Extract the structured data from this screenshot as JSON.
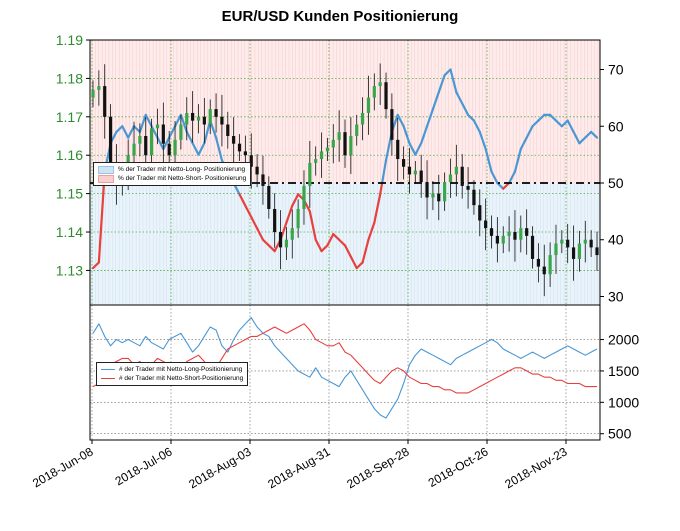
{
  "chart_data": {
    "type": "line",
    "title": "EUR/USD Kunden Positionierung",
    "x_dates": [
      "2018-Jun-08",
      "2018-Jul-06",
      "2018-Aug-03",
      "2018-Aug-31",
      "2018-Sep-28",
      "2018-Oct-26",
      "2018-Nov-23"
    ],
    "top_panel": {
      "price_axis_ticks": [
        1.13,
        1.14,
        1.15,
        1.16,
        1.17,
        1.18,
        1.19
      ],
      "price_ylim": [
        1.121,
        1.19
      ],
      "pct_axis_ticks": [
        30,
        40,
        50,
        60,
        70
      ],
      "pct_ylim": [
        28.5,
        75.2
      ],
      "neutral_line": 50,
      "legend": [
        "% der Trader mit Netto-Long- Positionierung",
        "% der Trader mit Netto-Short- Positionierung"
      ],
      "price_close_series": [
        1.177,
        1.178,
        1.17,
        1.158,
        1.152,
        1.155,
        1.16,
        1.163,
        1.165,
        1.16,
        1.167,
        1.168,
        1.163,
        1.16,
        1.164,
        1.168,
        1.171,
        1.169,
        1.17,
        1.168,
        1.172,
        1.17,
        1.168,
        1.165,
        1.163,
        1.161,
        1.16,
        1.157,
        1.155,
        1.152,
        1.146,
        1.14,
        1.136,
        1.138,
        1.141,
        1.146,
        1.152,
        1.158,
        1.159,
        1.161,
        1.162,
        1.164,
        1.166,
        1.16,
        1.165,
        1.168,
        1.171,
        1.175,
        1.178,
        1.179,
        1.172,
        1.164,
        1.159,
        1.157,
        1.155,
        1.156,
        1.153,
        1.149,
        1.15,
        1.148,
        1.153,
        1.155,
        1.157,
        1.152,
        1.151,
        1.147,
        1.143,
        1.141,
        1.139,
        1.137,
        1.139,
        1.14,
        1.138,
        1.141,
        1.139,
        1.133,
        1.131,
        1.129,
        1.134,
        1.137,
        1.138,
        1.136,
        1.133,
        1.137,
        1.138,
        1.136,
        1.134
      ],
      "long_pct_series": [
        35,
        36,
        52,
        57,
        59,
        60,
        58,
        60,
        59,
        62,
        60,
        58,
        56,
        58,
        60,
        62,
        59,
        57,
        55,
        57,
        61,
        58,
        54,
        52,
        50,
        48,
        46,
        44,
        42,
        40,
        39,
        38,
        40,
        43,
        46,
        48,
        47,
        45,
        40,
        38,
        39,
        41,
        40,
        39,
        37,
        35,
        36,
        40,
        43,
        48,
        54,
        59,
        62,
        60,
        57,
        55,
        57,
        60,
        63,
        66,
        69,
        70,
        66,
        64,
        62,
        61,
        59,
        56,
        52,
        50,
        49,
        50,
        52,
        56,
        58,
        60,
        61,
        62,
        62,
        61,
        60,
        61,
        59,
        57,
        58,
        59,
        58
      ]
    },
    "bottom_panel": {
      "y_axis_ticks": [
        500,
        1000,
        1500,
        2000
      ],
      "ylim": [
        400,
        2550
      ],
      "series": [
        {
          "name": "# der Trader mit Netto-Long-Positionierung",
          "color": "#4a97d4"
        },
        {
          "name": "# der Trader mit Netto-Short-Positionierung",
          "color": "#e8403c"
        }
      ],
      "long_count_series": [
        2100,
        2250,
        2050,
        1900,
        2000,
        1950,
        2000,
        1950,
        1900,
        2050,
        1950,
        1900,
        1850,
        2000,
        2050,
        2100,
        1950,
        1800,
        1900,
        2050,
        2200,
        2150,
        1900,
        1800,
        2000,
        2150,
        2250,
        2350,
        2200,
        2100,
        2050,
        1900,
        1800,
        1700,
        1600,
        1500,
        1450,
        1400,
        1550,
        1400,
        1350,
        1300,
        1250,
        1400,
        1500,
        1350,
        1200,
        1050,
        900,
        800,
        750,
        900,
        1050,
        1300,
        1600,
        1750,
        1850,
        1800,
        1750,
        1700,
        1650,
        1600,
        1700,
        1750,
        1800,
        1850,
        1900,
        1950,
        2000,
        1950,
        1850,
        1800,
        1750,
        1700,
        1750,
        1800,
        1750,
        1700,
        1750,
        1800,
        1850,
        1900,
        1850,
        1800,
        1750,
        1800,
        1850
      ],
      "short_count_series": [
        1250,
        1300,
        1550,
        1600,
        1650,
        1700,
        1700,
        1600,
        1650,
        1550,
        1600,
        1700,
        1650,
        1600,
        1550,
        1500,
        1650,
        1700,
        1750,
        1650,
        1500,
        1550,
        1700,
        1850,
        1900,
        1950,
        2000,
        2050,
        2050,
        2100,
        2150,
        2200,
        2150,
        2100,
        2150,
        2200,
        2250,
        2150,
        2000,
        1950,
        1900,
        1900,
        1950,
        1800,
        1750,
        1650,
        1550,
        1450,
        1350,
        1300,
        1400,
        1500,
        1550,
        1500,
        1400,
        1350,
        1300,
        1300,
        1250,
        1250,
        1200,
        1200,
        1150,
        1150,
        1150,
        1200,
        1250,
        1300,
        1350,
        1400,
        1450,
        1500,
        1550,
        1550,
        1500,
        1450,
        1450,
        1400,
        1400,
        1350,
        1350,
        1300,
        1300,
        1300,
        1250,
        1250,
        1250
      ]
    }
  }
}
